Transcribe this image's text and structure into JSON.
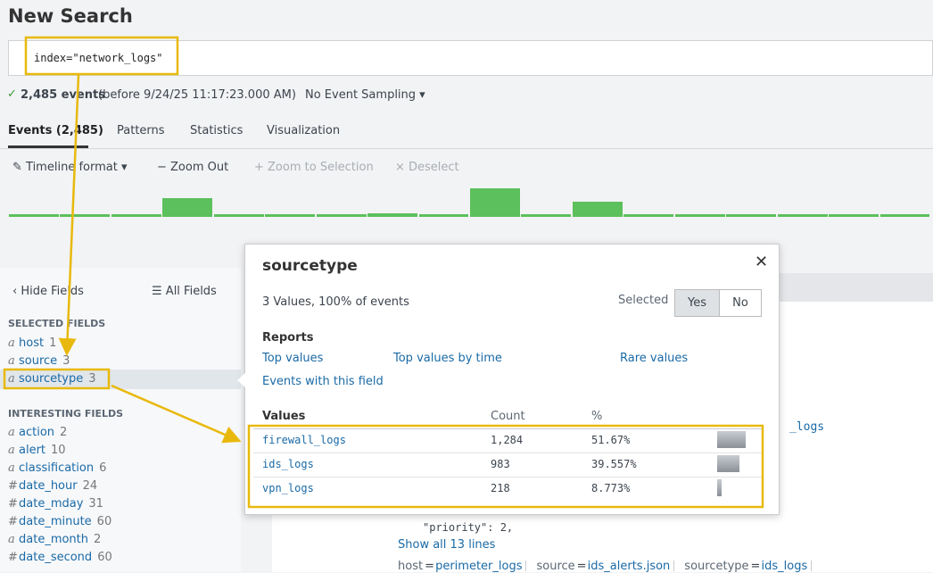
{
  "header": {
    "title": "New Search"
  },
  "search": {
    "query": "index=\"network_logs\""
  },
  "status": {
    "events": "2,485 events",
    "time": "(before 9/24/25 11:17:23.000 AM)",
    "sampling": "No Event Sampling"
  },
  "tabs": [
    "Events (2,485)",
    "Patterns",
    "Statistics",
    "Visualization"
  ],
  "toolbar": [
    "Timeline format",
    "Zoom Out",
    "+ Zoom to Selection",
    "× Deselect"
  ],
  "timeline": {
    "values": [
      3,
      3,
      3,
      21,
      3,
      3,
      3,
      4,
      3,
      32,
      3,
      17,
      3,
      3,
      3,
      3,
      3,
      3
    ],
    "color": "#5cc05c"
  },
  "sidebar": {
    "hide": "Hide Fields",
    "all": "All Fields",
    "selected_heading": "SELECTED FIELDS",
    "selected": [
      {
        "type": "a",
        "name": "host",
        "count": 1
      },
      {
        "type": "a",
        "name": "source",
        "count": 3
      },
      {
        "type": "a",
        "name": "sourcetype",
        "count": 3
      }
    ],
    "interesting_heading": "INTERESTING FIELDS",
    "interesting": [
      {
        "type": "a",
        "name": "action",
        "count": 2
      },
      {
        "type": "a",
        "name": "alert",
        "count": 10
      },
      {
        "type": "a",
        "name": "classification",
        "count": 6
      },
      {
        "type": "#",
        "name": "date_hour",
        "count": 24
      },
      {
        "type": "#",
        "name": "date_mday",
        "count": 31
      },
      {
        "type": "#",
        "name": "date_minute",
        "count": 60
      },
      {
        "type": "a",
        "name": "date_month",
        "count": 2
      },
      {
        "type": "#",
        "name": "date_second",
        "count": 60
      }
    ]
  },
  "popup": {
    "title": "sourcetype",
    "summary": "3 Values, 100% of events",
    "selected_label": "Selected",
    "yes": "Yes",
    "no": "No",
    "reports_heading": "Reports",
    "reports": [
      "Top values",
      "Top values by time",
      "Rare values",
      "Events with this field"
    ],
    "headers": [
      "Values",
      "Count",
      "%"
    ],
    "rows": [
      {
        "value": "firewall_logs",
        "count": "1,284",
        "percent": 51.67,
        "percent_label": "51.67%"
      },
      {
        "value": "ids_logs",
        "count": "983",
        "percent": 39.557,
        "percent_label": "39.557%"
      },
      {
        "value": "vpn_logs",
        "count": "218",
        "percent": 8.773,
        "percent_label": "8.773%"
      }
    ]
  },
  "event": {
    "clipped": "_logs",
    "line": "\"priority\": 2,",
    "show_all": "Show all 13 lines",
    "fields": [
      {
        "key": "host",
        "value": "perimeter_logs"
      },
      {
        "key": "source",
        "value": "ids_alerts.json"
      },
      {
        "key": "sourcetype",
        "value": "ids_logs"
      }
    ]
  }
}
